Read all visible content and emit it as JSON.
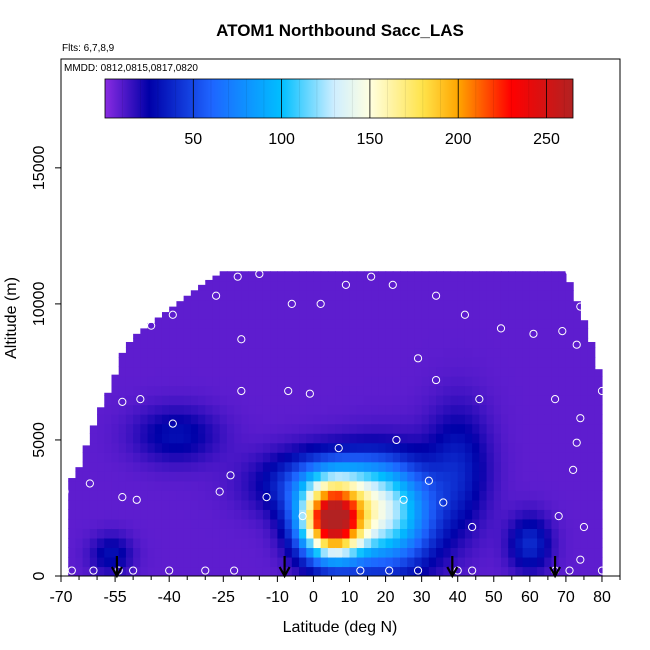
{
  "chart_data": {
    "type": "heatmap",
    "title": "ATOM1 Northbound Sacc_LAS",
    "subtitle_flights": "Flts: 6,7,8,9",
    "subtitle_dates": "MMDD: 0812,0815,0817,0820",
    "xlabel": "Latitude (deg N)",
    "ylabel": "Altitude (m)",
    "xlim": [
      -70,
      85
    ],
    "ylim": [
      0,
      19000
    ],
    "x_tick_values": [
      -70,
      -55,
      -40,
      -25,
      -10,
      0,
      10,
      20,
      30,
      40,
      50,
      60,
      70,
      80
    ],
    "x_tick_labels": [
      "-70",
      "-55",
      "-40",
      "-25",
      "-10",
      "0",
      "10",
      "20",
      "30",
      "40",
      "50",
      "60",
      "70",
      "80"
    ],
    "y_tick_values": [
      0,
      5000,
      10000,
      15000
    ],
    "y_tick_labels": [
      "0",
      "5000",
      "10000",
      "15000"
    ],
    "colorbar": {
      "range": [
        0,
        265
      ],
      "tick_values": [
        50,
        100,
        150,
        200,
        250
      ],
      "tick_labels": [
        "50",
        "100",
        "150",
        "200",
        "250"
      ],
      "stops": [
        {
          "v": 0,
          "color": "#8a2be2"
        },
        {
          "v": 25,
          "color": "#0000a8"
        },
        {
          "v": 60,
          "color": "#1e64ff"
        },
        {
          "v": 100,
          "color": "#00bfff"
        },
        {
          "v": 130,
          "color": "#cfeeff"
        },
        {
          "v": 150,
          "color": "#ffffe0"
        },
        {
          "v": 180,
          "color": "#ffe34a"
        },
        {
          "v": 200,
          "color": "#ffa500"
        },
        {
          "v": 230,
          "color": "#ff0000"
        },
        {
          "v": 265,
          "color": "#b22222"
        }
      ]
    },
    "background_value": 8,
    "coverage_profile": [
      {
        "lat": -68,
        "alt_top": 3400
      },
      {
        "lat": -65,
        "alt_top": 4000
      },
      {
        "lat": -62,
        "alt_top": 5200
      },
      {
        "lat": -59,
        "alt_top": 6200
      },
      {
        "lat": -56,
        "alt_top": 7000
      },
      {
        "lat": -53,
        "alt_top": 8200
      },
      {
        "lat": -50,
        "alt_top": 8800
      },
      {
        "lat": -46,
        "alt_top": 9200
      },
      {
        "lat": -42,
        "alt_top": 9600
      },
      {
        "lat": -38,
        "alt_top": 10000
      },
      {
        "lat": -34,
        "alt_top": 10400
      },
      {
        "lat": -30,
        "alt_top": 10800
      },
      {
        "lat": -25,
        "alt_top": 11200
      },
      {
        "lat": 30,
        "alt_top": 11200
      },
      {
        "lat": 70,
        "alt_top": 11200
      },
      {
        "lat": 72,
        "alt_top": 10400
      },
      {
        "lat": 74,
        "alt_top": 9800
      },
      {
        "lat": 76,
        "alt_top": 9000
      },
      {
        "lat": 78,
        "alt_top": 8200
      },
      {
        "lat": 80,
        "alt_top": 7000
      }
    ],
    "anomalies": [
      {
        "lat": 5,
        "alt": 2000,
        "lat_sigma": 6,
        "alt_sigma": 900,
        "value": 245
      },
      {
        "lat": 20,
        "alt": 2200,
        "lat_sigma": 9,
        "alt_sigma": 1300,
        "value": 120
      },
      {
        "lat": 5,
        "alt": 3400,
        "lat_sigma": 12,
        "alt_sigma": 800,
        "value": 70
      },
      {
        "lat": -38,
        "alt": 5200,
        "lat_sigma": 8,
        "alt_sigma": 700,
        "value": 30
      },
      {
        "lat": 40,
        "alt": 4000,
        "lat_sigma": 6,
        "alt_sigma": 1500,
        "value": 35
      },
      {
        "lat": 60,
        "alt": 1200,
        "lat_sigma": 4,
        "alt_sigma": 700,
        "value": 40
      },
      {
        "lat": -56,
        "alt": 800,
        "lat_sigma": 4,
        "alt_sigma": 500,
        "value": 30
      }
    ],
    "sample_points": [
      {
        "lat": -67,
        "alt": 200
      },
      {
        "lat": -61,
        "alt": 200
      },
      {
        "lat": -54,
        "alt": 200
      },
      {
        "lat": -50,
        "alt": 200
      },
      {
        "lat": -40,
        "alt": 200
      },
      {
        "lat": -30,
        "alt": 200
      },
      {
        "lat": -22,
        "alt": 200
      },
      {
        "lat": 13,
        "alt": 200
      },
      {
        "lat": 21,
        "alt": 200
      },
      {
        "lat": 29,
        "alt": 200
      },
      {
        "lat": 40,
        "alt": 200
      },
      {
        "lat": 44,
        "alt": 200
      },
      {
        "lat": 67,
        "alt": 200
      },
      {
        "lat": 71,
        "alt": 200
      },
      {
        "lat": 74,
        "alt": 600
      },
      {
        "lat": 80,
        "alt": 200
      },
      {
        "lat": -69,
        "alt": 3100
      },
      {
        "lat": -62,
        "alt": 3400
      },
      {
        "lat": -53,
        "alt": 2900
      },
      {
        "lat": -49,
        "alt": 2800
      },
      {
        "lat": -26,
        "alt": 3100
      },
      {
        "lat": -23,
        "alt": 3700
      },
      {
        "lat": -13,
        "alt": 2900
      },
      {
        "lat": -3,
        "alt": 2200
      },
      {
        "lat": 25,
        "alt": 2800
      },
      {
        "lat": 32,
        "alt": 3500
      },
      {
        "lat": 36,
        "alt": 2700
      },
      {
        "lat": 44,
        "alt": 1800
      },
      {
        "lat": 68,
        "alt": 2200
      },
      {
        "lat": 75,
        "alt": 1800
      },
      {
        "lat": -39,
        "alt": 5600
      },
      {
        "lat": 7,
        "alt": 4700
      },
      {
        "lat": 23,
        "alt": 5000
      },
      {
        "lat": 73,
        "alt": 4900
      },
      {
        "lat": 72,
        "alt": 3900
      },
      {
        "lat": -53,
        "alt": 6400
      },
      {
        "lat": -48,
        "alt": 6500
      },
      {
        "lat": -20,
        "alt": 6800
      },
      {
        "lat": -7,
        "alt": 6800
      },
      {
        "lat": -1,
        "alt": 6700
      },
      {
        "lat": 34,
        "alt": 7200
      },
      {
        "lat": 46,
        "alt": 6500
      },
      {
        "lat": 67,
        "alt": 6500
      },
      {
        "lat": 74,
        "alt": 5800
      },
      {
        "lat": 80,
        "alt": 6800
      },
      {
        "lat": -54,
        "alt": 8600
      },
      {
        "lat": -20,
        "alt": 8700
      },
      {
        "lat": 29,
        "alt": 8000
      },
      {
        "lat": 61,
        "alt": 8900
      },
      {
        "lat": 73,
        "alt": 8500
      },
      {
        "lat": -45,
        "alt": 9200
      },
      {
        "lat": -39,
        "alt": 9600
      },
      {
        "lat": 52,
        "alt": 9100
      },
      {
        "lat": 69,
        "alt": 9000
      },
      {
        "lat": -27,
        "alt": 10300
      },
      {
        "lat": -6,
        "alt": 10000
      },
      {
        "lat": 2,
        "alt": 10000
      },
      {
        "lat": 34,
        "alt": 10300
      },
      {
        "lat": 42,
        "alt": 9600
      },
      {
        "lat": 74,
        "alt": 9900
      },
      {
        "lat": -21,
        "alt": 11000
      },
      {
        "lat": -15,
        "alt": 11100
      },
      {
        "lat": 9,
        "alt": 10700
      },
      {
        "lat": 16,
        "alt": 11000
      },
      {
        "lat": 22,
        "alt": 10700
      },
      {
        "lat": 71,
        "alt": 11200
      }
    ],
    "arrows_lat": [
      -54.5,
      -8,
      38.5,
      67
    ]
  }
}
